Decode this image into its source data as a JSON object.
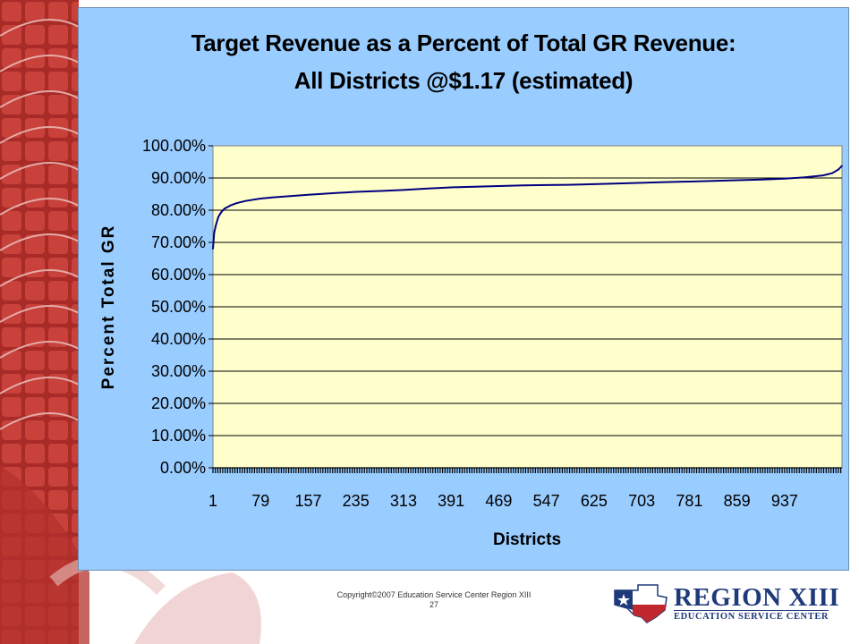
{
  "slide": {
    "copyright": "Copyright©2007 Education Service Center Region XIII",
    "page_number": "27",
    "logo_title": "REGION XIII",
    "logo_subtitle": "EDUCATION SERVICE CENTER",
    "colors": {
      "panel": "#99ccff",
      "plot_area": "#ffffcc",
      "line": "#000080",
      "deco_red": "#b3322e"
    }
  },
  "chart_data": {
    "type": "line",
    "title": "Target Revenue as a Percent of Total GR Revenue:",
    "subtitle": "All Districts @$1.17 (estimated)",
    "xlabel": "Districts",
    "ylabel": "Percent Total GR",
    "x_ticks": [
      "1",
      "79",
      "157",
      "235",
      "313",
      "391",
      "469",
      "547",
      "625",
      "703",
      "781",
      "859",
      "937"
    ],
    "y_ticks": [
      "0.00%",
      "10.00%",
      "20.00%",
      "30.00%",
      "40.00%",
      "50.00%",
      "60.00%",
      "70.00%",
      "80.00%",
      "90.00%",
      "100.00%"
    ],
    "xlim": [
      1,
      1031
    ],
    "ylim": [
      0,
      100
    ],
    "grid": "horizontal",
    "series": [
      {
        "x": [
          1,
          3,
          6,
          10,
          15,
          20,
          30,
          40,
          55,
          79,
          100,
          130,
          157,
          200,
          235,
          280,
          313,
          350,
          391,
          430,
          469,
          510,
          547,
          590,
          625,
          665,
          703,
          740,
          781,
          820,
          859,
          900,
          937,
          970,
          1000,
          1015,
          1025,
          1031
        ],
        "y": [
          68,
          73,
          75.5,
          78,
          79.5,
          80.5,
          81.5,
          82.2,
          82.9,
          83.6,
          84.0,
          84.4,
          84.8,
          85.3,
          85.7,
          86.0,
          86.3,
          86.7,
          87.1,
          87.3,
          87.5,
          87.7,
          87.8,
          87.9,
          88.1,
          88.3,
          88.5,
          88.7,
          88.9,
          89.1,
          89.3,
          89.5,
          89.8,
          90.2,
          90.8,
          91.5,
          92.6,
          93.8
        ]
      }
    ]
  }
}
